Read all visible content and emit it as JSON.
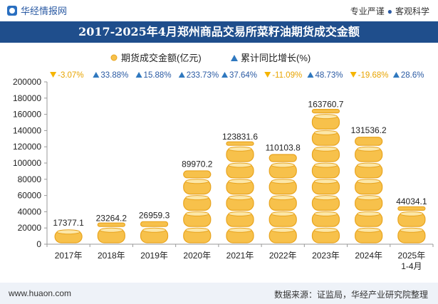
{
  "header": {
    "brand_name": "华经情报网",
    "tagline_left": "专业严谨",
    "tagline_right": "客观科学"
  },
  "title_bar": {
    "title": "2017-2025年4月郑州商品交易所菜籽油期货成交金额"
  },
  "footer": {
    "url": "www.huaon.com",
    "source": "数据来源：证监局，华经产业研究院整理"
  },
  "colors": {
    "coin_fill": "#f7c14b",
    "coin_rim": "#e8a41f",
    "coin_shine": "#fce7a8",
    "up_marker": "#2f78bf",
    "down_marker": "#f5b400",
    "growth_down_text": "#e8a400",
    "growth_up_text": "#2a5aa3",
    "title_bar": "#1f4e8c"
  },
  "chart_data": {
    "type": "bar",
    "title": "2017-2025年4月郑州商品交易所菜籽油期货成交金额",
    "categories": [
      "2017年",
      "2018年",
      "2019年",
      "2020年",
      "2021年",
      "2022年",
      "2023年",
      "2024年",
      "2025年\n1-4月"
    ],
    "series": [
      {
        "name": "期货成交金额(亿元)",
        "values": [
          17377.1,
          23264.2,
          26959.3,
          89970.2,
          123831.6,
          110103.8,
          163760.7,
          131536.2,
          44034.1
        ],
        "data_labels": [
          "17377.1",
          "23264.2",
          "26959.3",
          "89970.2",
          "123831.6",
          "110103.8",
          "163760.7",
          "131536.2",
          "44034.1"
        ]
      },
      {
        "name": "累计同比增长(%)",
        "values": [
          -3.07,
          33.88,
          15.88,
          233.73,
          37.64,
          -11.09,
          48.73,
          -19.68,
          28.6
        ],
        "data_labels": [
          "-3.07%",
          "33.88%",
          "15.88%",
          "233.73%",
          "37.64%",
          "-11.09%",
          "48.73%",
          "-19.68%",
          "28.6%"
        ]
      }
    ],
    "legend": {
      "position": "top-center",
      "items": [
        "期货成交金额(亿元)",
        "累计同比增长(%)"
      ]
    },
    "y_axis": {
      "min": 0,
      "max": 200000,
      "ticks": [
        0,
        20000,
        40000,
        60000,
        80000,
        100000,
        120000,
        140000,
        160000,
        180000,
        200000
      ],
      "tick_labels": [
        "0",
        "20000",
        "40000",
        "60000",
        "80000",
        "100000",
        "120000",
        "140000",
        "160000",
        "180000",
        "200000"
      ]
    },
    "coin_unit": 20000,
    "grid": false,
    "xlabel": "",
    "ylabel": ""
  }
}
